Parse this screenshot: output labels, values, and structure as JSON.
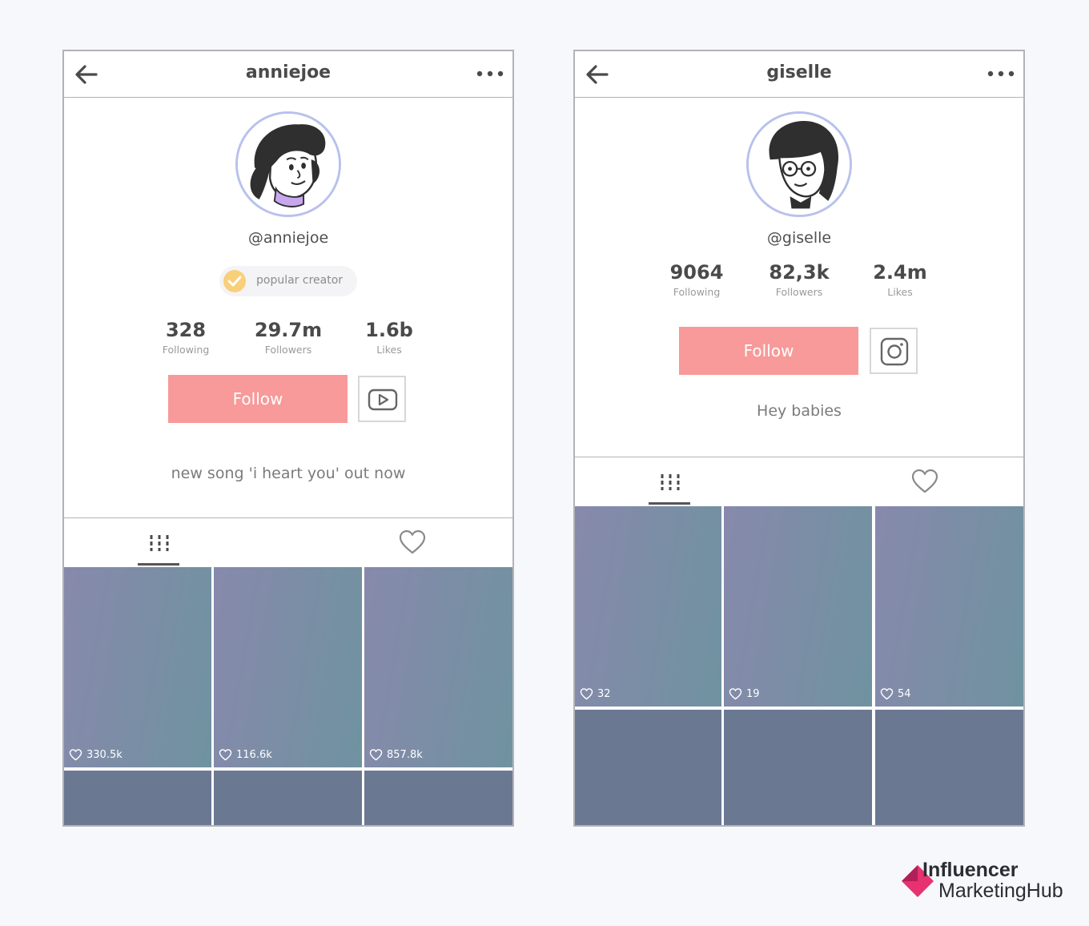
{
  "profiles": [
    {
      "username": "anniejoe",
      "handle": "@anniejoe",
      "badge_label": "popular creator",
      "stats": [
        {
          "value": "328",
          "label": "Following"
        },
        {
          "value": "29.7m",
          "label": "Followers"
        },
        {
          "value": "1.6b",
          "label": "Likes"
        }
      ],
      "follow_label": "Follow",
      "social_icon": "youtube-icon",
      "bio": "new song 'i heart you' out now",
      "videos": [
        {
          "likes": "330.5k"
        },
        {
          "likes": "116.6k"
        },
        {
          "likes": "857.8k"
        }
      ]
    },
    {
      "username": "giselle",
      "handle": "@giselle",
      "stats": [
        {
          "value": "9064",
          "label": "Following"
        },
        {
          "value": "82,3k",
          "label": "Followers"
        },
        {
          "value": "2.4m",
          "label": "Likes"
        }
      ],
      "follow_label": "Follow",
      "social_icon": "instagram-icon",
      "bio": "Hey babies",
      "videos": [
        {
          "likes": "32"
        },
        {
          "likes": "19"
        },
        {
          "likes": "54"
        }
      ]
    }
  ],
  "brand": {
    "line1": "Influencer",
    "line2": "MarketingHub"
  },
  "colors": {
    "follow_button": "#f79a99",
    "avatar_ring": "#b9c1ec",
    "badge_check": "#f9cf7a",
    "brand_accent": "#e8316f",
    "background": "#f6f8fc"
  }
}
